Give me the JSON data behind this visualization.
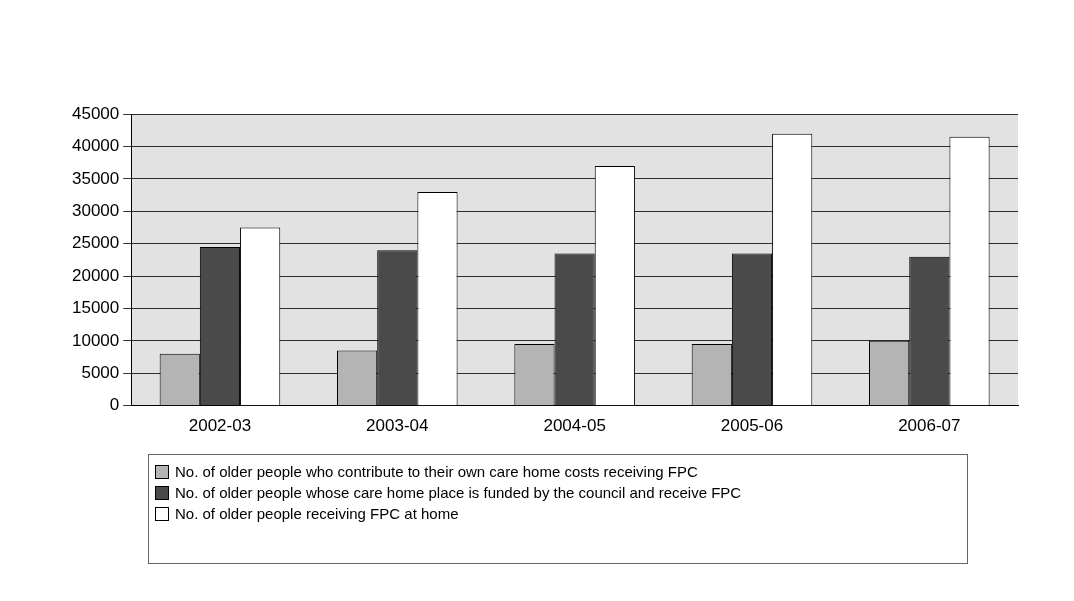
{
  "chart_data": {
    "type": "bar",
    "categories": [
      "2002-03",
      "2003-04",
      "2004-05",
      "2005-06",
      "2006-07"
    ],
    "series": [
      {
        "name": "No. of older people who contribute to their own care home costs receiving FPC",
        "color": "#b4b4b4",
        "values": [
          8000,
          8500,
          9500,
          9500,
          10000
        ]
      },
      {
        "name": "No. of older people whose care home place is funded by the council and receive FPC",
        "color": "#4a4a4a",
        "values": [
          24500,
          24000,
          23500,
          23500,
          23000
        ]
      },
      {
        "name": "No. of older people receiving FPC at home",
        "color": "#ffffff",
        "values": [
          27500,
          33000,
          37000,
          42000,
          41500
        ]
      }
    ],
    "ylim": [
      0,
      45000
    ],
    "yticks": [
      0,
      5000,
      10000,
      15000,
      20000,
      25000,
      30000,
      35000,
      40000,
      45000
    ],
    "grid": "y",
    "legend": "bottom"
  }
}
